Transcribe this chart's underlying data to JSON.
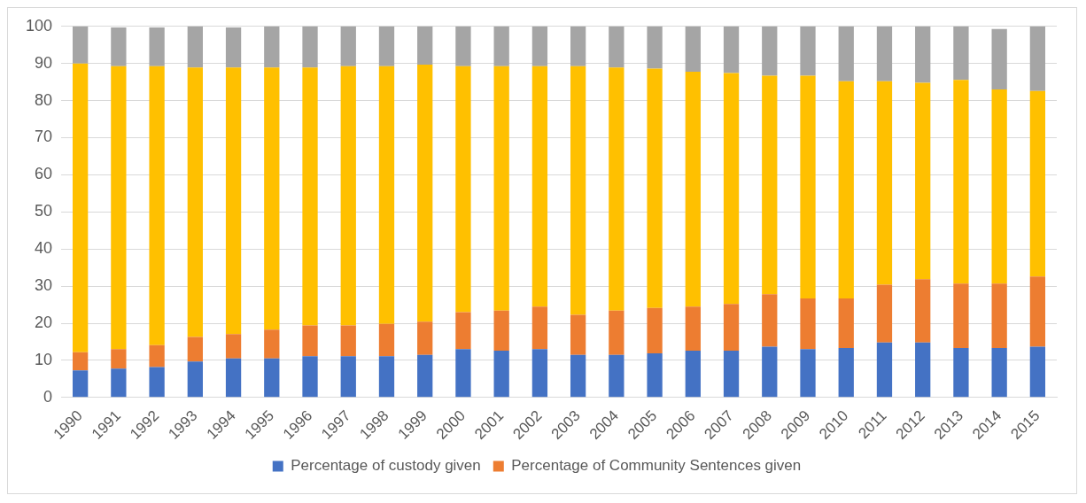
{
  "chart_data": {
    "type": "bar",
    "stacked": true,
    "categories": [
      "1990",
      "1991",
      "1992",
      "1993",
      "1994",
      "1995",
      "1996",
      "1997",
      "1998",
      "1999",
      "2000",
      "2001",
      "2002",
      "2003",
      "2004",
      "2005",
      "2006",
      "2007",
      "2008",
      "2009",
      "2010",
      "2011",
      "2012",
      "2013",
      "2014",
      "2015"
    ],
    "series": [
      {
        "name": "Percentage of custody given",
        "color": "#4472c4",
        "values": [
          7.3,
          7.8,
          8.2,
          9.7,
          10.5,
          10.5,
          11.1,
          11.1,
          11.1,
          11.5,
          13,
          12.6,
          13,
          11.5,
          11.5,
          11.9,
          12.6,
          12.6,
          13.7,
          13,
          13.3,
          14.8,
          14.8,
          13.3,
          13.3,
          13.7
        ]
      },
      {
        "name": "Percentage of Community Sentences given",
        "color": "#ed7d31",
        "values": [
          4.9,
          5.2,
          5.9,
          6.6,
          6.6,
          7.8,
          8.3,
          8.3,
          8.7,
          8.9,
          10,
          10.8,
          11.5,
          10.8,
          11.9,
          12.2,
          11.9,
          12.6,
          14.1,
          13.7,
          13.4,
          15.6,
          17.1,
          17.4,
          17.4,
          18.9
        ]
      },
      {
        "color": "#ffc000",
        "values": [
          77.8,
          76.3,
          75.2,
          72.6,
          71.8,
          70.6,
          69.5,
          69.9,
          69.5,
          69.3,
          66.3,
          65.9,
          64.8,
          67,
          65.5,
          64.5,
          63.3,
          62.2,
          58.9,
          60,
          58.5,
          54.8,
          52.9,
          54.9,
          52.3,
          50
        ]
      },
      {
        "color": "#a5a5a5",
        "values": [
          10,
          10.4,
          10.4,
          11.1,
          10.8,
          11.1,
          11.1,
          10.7,
          10.7,
          10.3,
          10.7,
          10.7,
          10.7,
          10.7,
          11.1,
          11.4,
          12.2,
          12.6,
          13.3,
          13.3,
          14.8,
          14.8,
          15.2,
          14.4,
          16.3,
          17.4
        ]
      }
    ],
    "ylim": [
      0,
      100
    ],
    "yticks": [
      0,
      10,
      20,
      30,
      40,
      50,
      60,
      70,
      80,
      90,
      100
    ],
    "grid": "y",
    "legend": "bottom"
  }
}
